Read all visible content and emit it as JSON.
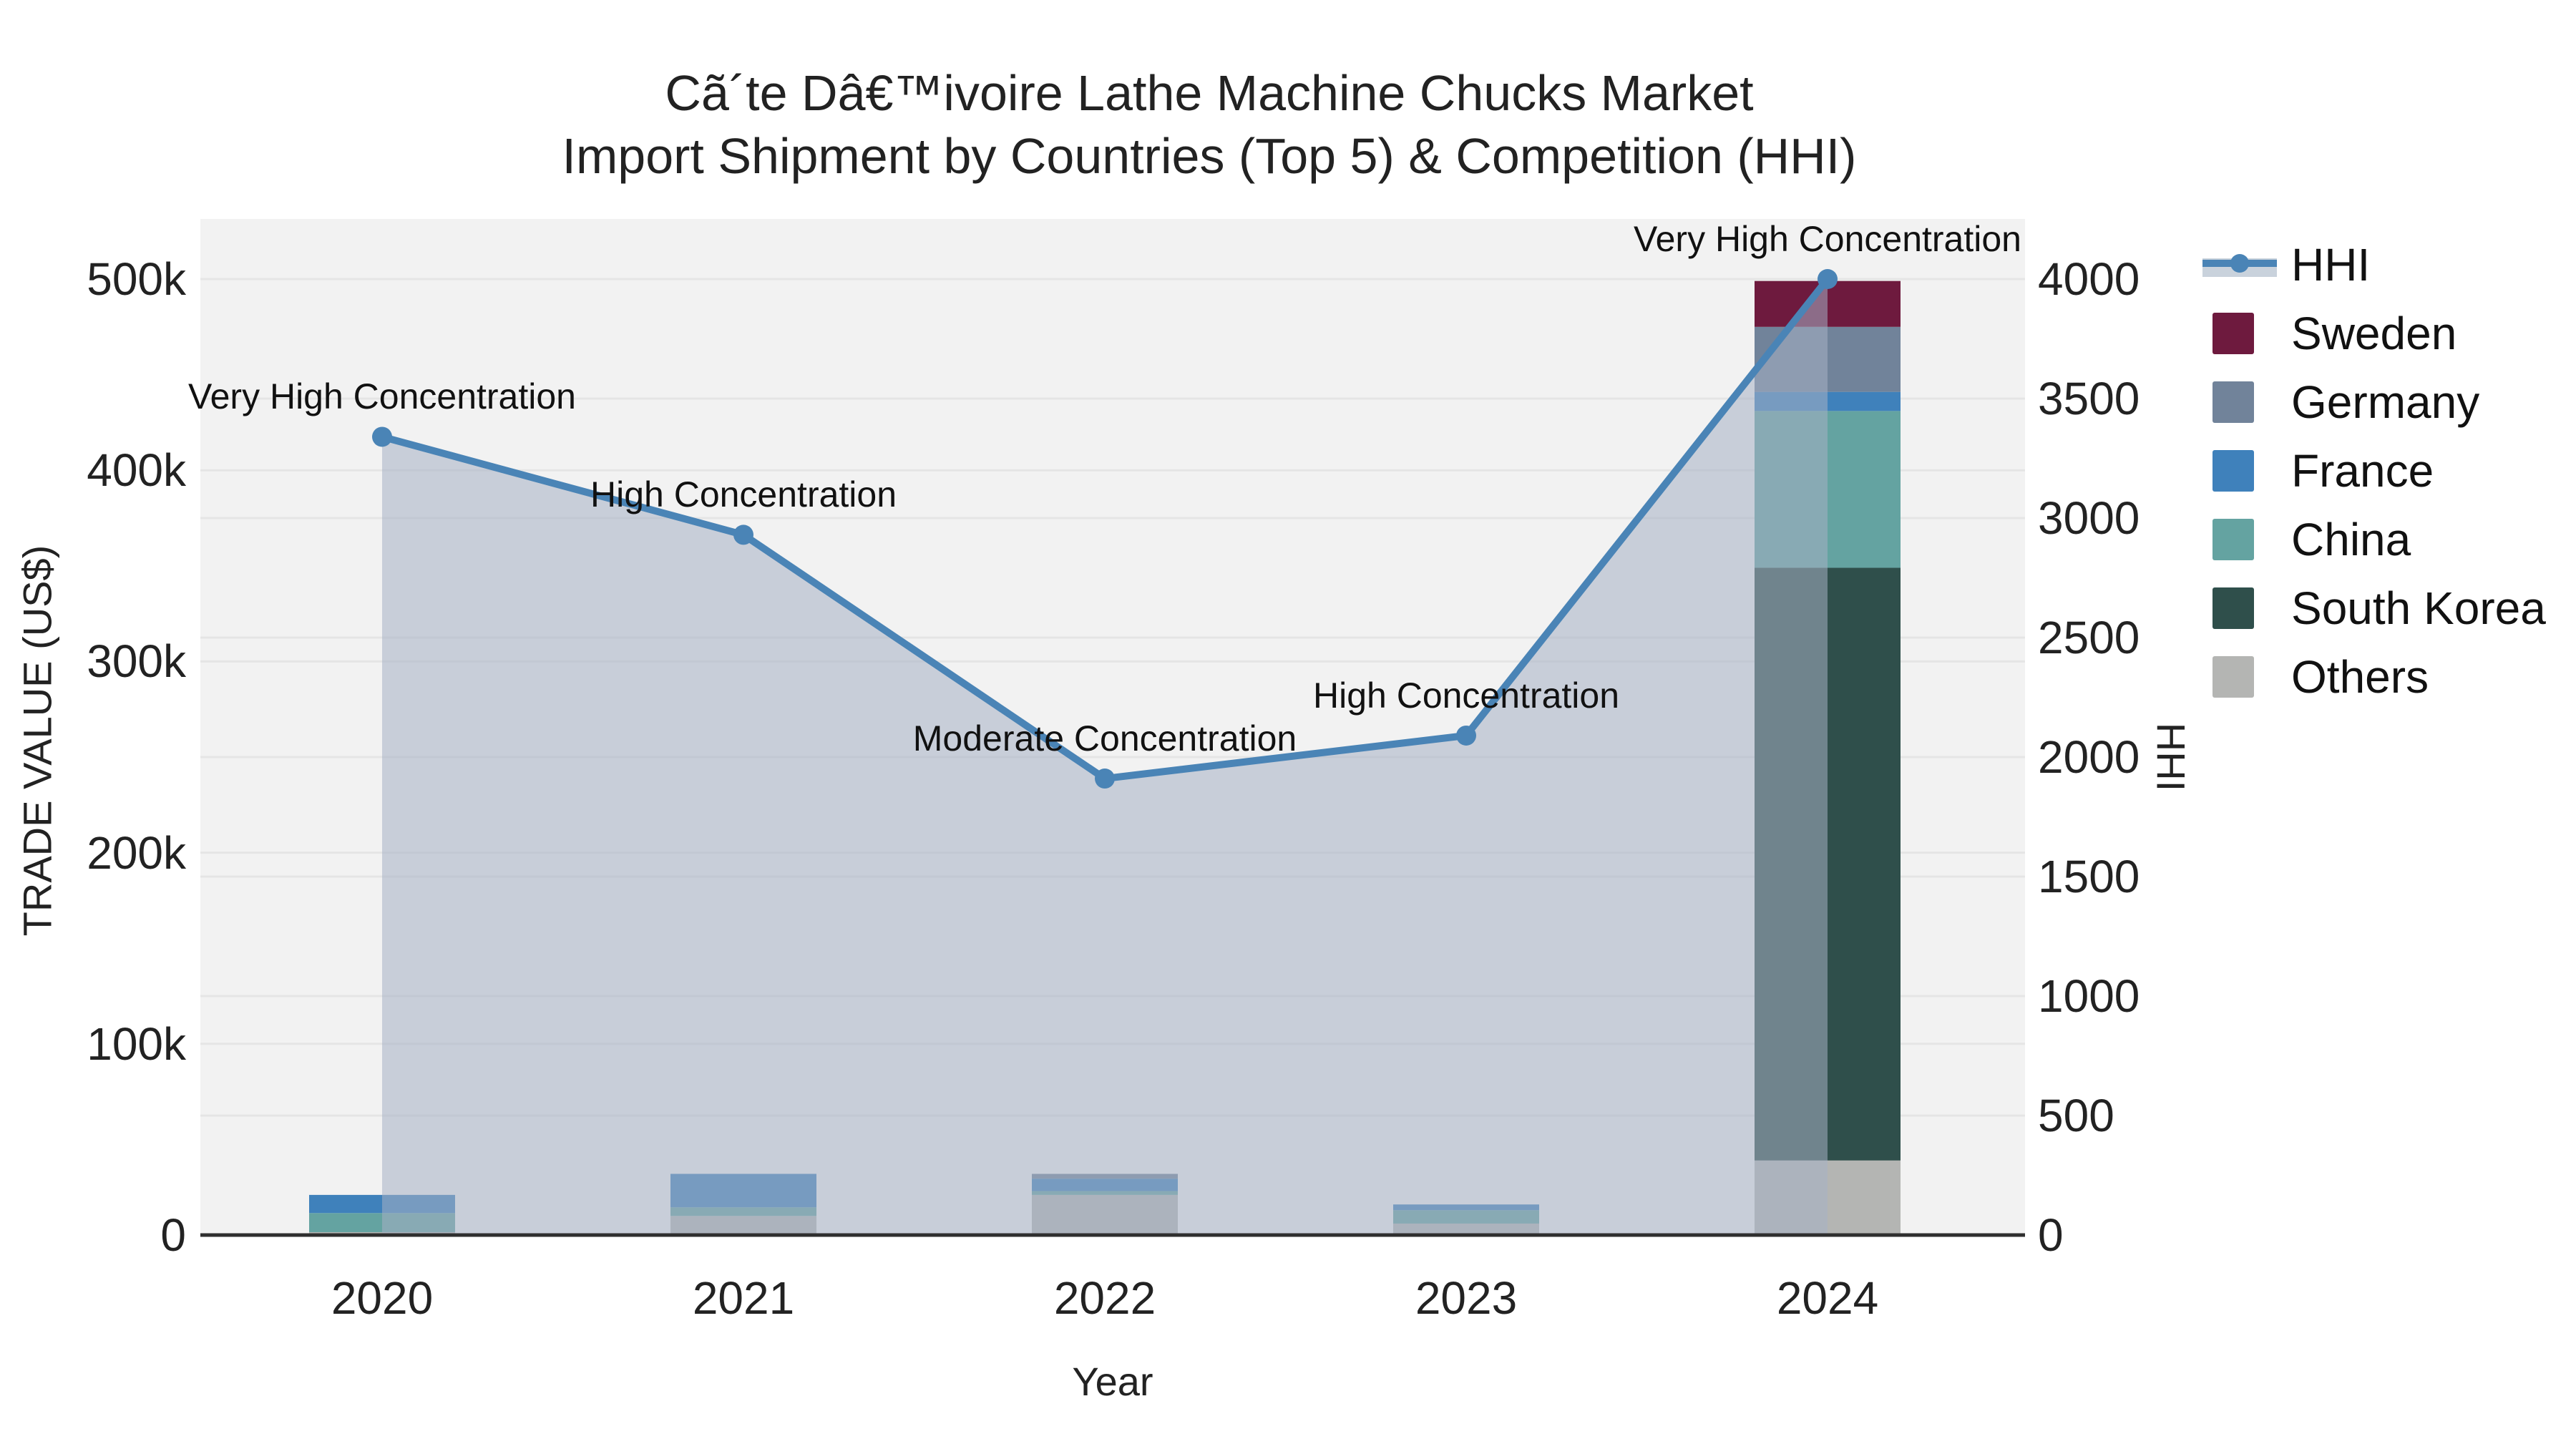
{
  "title": {
    "line1": "Cã´te Dâ€™ivoire Lathe Machine Chucks Market",
    "line2": "Import Shipment by Countries (Top 5) & Competition (HHI)"
  },
  "axes": {
    "left": {
      "title": "TRADE VALUE (US$)",
      "ticks": [
        "0",
        "100k",
        "200k",
        "300k",
        "400k",
        "500k"
      ],
      "tick_values": [
        0,
        100000,
        200000,
        300000,
        400000,
        500000
      ],
      "range": [
        0,
        500000
      ]
    },
    "right": {
      "title": "HHI",
      "ticks": [
        "0",
        "500",
        "1000",
        "1500",
        "2000",
        "2500",
        "3000",
        "3500",
        "4000"
      ],
      "tick_values": [
        0,
        500,
        1000,
        1500,
        2000,
        2500,
        3000,
        3500,
        4000
      ],
      "range": [
        0,
        4000
      ]
    },
    "x": {
      "title": "Year",
      "ticks": [
        "2020",
        "2021",
        "2022",
        "2023",
        "2024"
      ]
    }
  },
  "legend": {
    "items": [
      {
        "label": "HHI",
        "kind": "line",
        "color": "#4a84b6",
        "band": "#c9d2dc"
      },
      {
        "label": "Sweden",
        "kind": "swatch",
        "color": "#6e1a3e"
      },
      {
        "label": "Germany",
        "kind": "swatch",
        "color": "#71839a"
      },
      {
        "label": "France",
        "kind": "swatch",
        "color": "#3f81bb"
      },
      {
        "label": "China",
        "kind": "swatch",
        "color": "#64a3a1"
      },
      {
        "label": "South Korea",
        "kind": "swatch",
        "color": "#2f4f4b"
      },
      {
        "label": "Others",
        "kind": "swatch",
        "color": "#b4b5b3"
      }
    ]
  },
  "chart_data": {
    "type": "combo-stacked-bar-and-line-area",
    "categories": [
      "2020",
      "2021",
      "2022",
      "2023",
      "2024"
    ],
    "bar_axis": "left",
    "bar_units": "US$",
    "series": [
      {
        "name": "Others",
        "color": "#b4b5b3",
        "values": [
          1500,
          10000,
          21000,
          6000,
          39000
        ]
      },
      {
        "name": "South Korea",
        "color": "#2f4f4b",
        "values": [
          0,
          0,
          0,
          0,
          310000
        ]
      },
      {
        "name": "China",
        "color": "#64a3a1",
        "values": [
          10000,
          4500,
          2000,
          7000,
          82000
        ]
      },
      {
        "name": "France",
        "color": "#3f81bb",
        "values": [
          9500,
          17500,
          6500,
          3000,
          10000
        ]
      },
      {
        "name": "Germany",
        "color": "#71839a",
        "values": [
          0,
          0,
          2500,
          0,
          34000
        ]
      },
      {
        "name": "Sweden",
        "color": "#6e1a3e",
        "values": [
          0,
          0,
          0,
          0,
          24000
        ]
      }
    ],
    "bar_totals": [
      21000,
      32000,
      32000,
      16000,
      499000
    ],
    "line_series": {
      "name": "HHI",
      "axis": "right",
      "color": "#4a84b6",
      "area_fill": "rgba(165,176,196,0.55)",
      "values": [
        3340,
        2930,
        1910,
        2090,
        4000
      ]
    },
    "annotations": [
      {
        "category": "2020",
        "text": "Very High Concentration"
      },
      {
        "category": "2021",
        "text": "High Concentration"
      },
      {
        "category": "2022",
        "text": "Moderate Concentration"
      },
      {
        "category": "2023",
        "text": "High Concentration"
      },
      {
        "category": "2024",
        "text": "Very High Concentration"
      }
    ],
    "title": "Cã´te Dâ€™ivoire Lathe Machine Chucks Market Import Shipment by Countries (Top 5) & Competition (HHI)",
    "xlabel": "Year",
    "ylabel_left": "TRADE VALUE (US$)",
    "ylabel_right": "HHI",
    "ylim_left": [
      0,
      500000
    ],
    "ylim_right": [
      0,
      4000
    ],
    "grid": true,
    "legend_position": "right",
    "plot_background": "#f2f2f2",
    "gridline_color": "rgba(0,0,0,0.05)",
    "axis_line_color": "#2f2f2f"
  }
}
